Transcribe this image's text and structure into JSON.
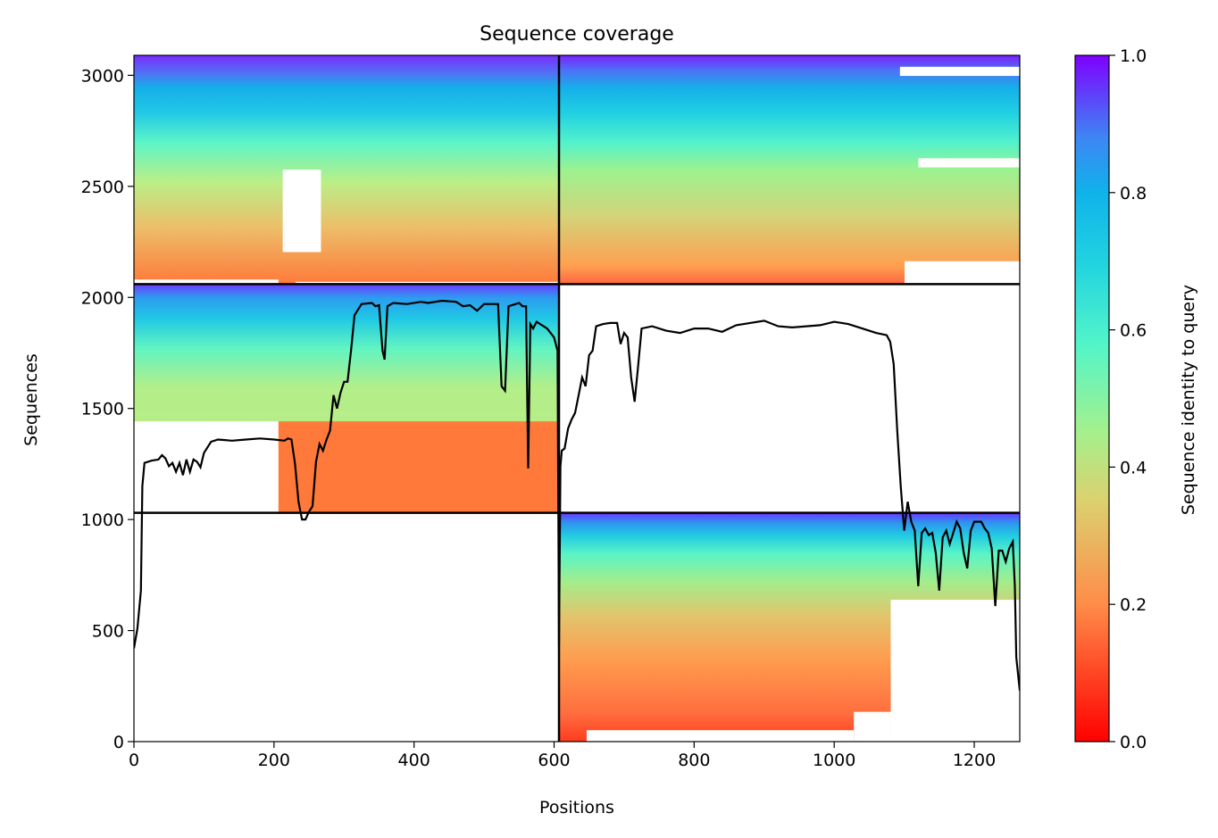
{
  "chart_data": {
    "type": "heatmap",
    "title": "Sequence coverage",
    "xlabel": "Positions",
    "ylabel": "Sequences",
    "xlim": [
      0,
      1265
    ],
    "ylim": [
      0,
      3090
    ],
    "xticks": [
      0,
      200,
      400,
      600,
      800,
      1000,
      1200
    ],
    "xtick_labels": [
      "0",
      "200",
      "400",
      "600",
      "800",
      "1000",
      "1200"
    ],
    "yticks": [
      0,
      500,
      1000,
      1500,
      2000,
      2500,
      3000
    ],
    "ytick_labels": [
      "0",
      "500",
      "1000",
      "1500",
      "2000",
      "2500",
      "3000"
    ],
    "colorbar": {
      "label": "Sequence identity to query",
      "range": [
        0.0,
        1.0
      ],
      "ticks": [
        0.0,
        0.2,
        0.4,
        0.6,
        0.8,
        1.0
      ],
      "tick_labels": [
        "0.0",
        "0.2",
        "0.4",
        "0.6",
        "0.8",
        "1.0"
      ],
      "colormap": "rainbow_r"
    },
    "block_boundaries": {
      "x": [
        607
      ],
      "y": [
        1030,
        2060
      ]
    },
    "blocks": [
      {
        "name": "block-top-left",
        "x_range": [
          0,
          607
        ],
        "y_range": [
          2060,
          3090
        ]
      },
      {
        "name": "block-top-right",
        "x_range": [
          607,
          1265
        ],
        "y_range": [
          2060,
          3090
        ]
      },
      {
        "name": "block-middle-left",
        "x_range": [
          0,
          607
        ],
        "y_range": [
          1030,
          2060
        ]
      },
      {
        "name": "block-bottom-right",
        "x_range": [
          607,
          1265
        ],
        "y_range": [
          0,
          1030
        ]
      }
    ],
    "coverage_line": {
      "color": "#000000",
      "points": [
        [
          0,
          420
        ],
        [
          5,
          510
        ],
        [
          10,
          680
        ],
        [
          12,
          1150
        ],
        [
          15,
          1255
        ],
        [
          25,
          1265
        ],
        [
          35,
          1270
        ],
        [
          40,
          1290
        ],
        [
          45,
          1275
        ],
        [
          50,
          1240
        ],
        [
          55,
          1255
        ],
        [
          60,
          1215
        ],
        [
          65,
          1255
        ],
        [
          70,
          1200
        ],
        [
          75,
          1270
        ],
        [
          80,
          1215
        ],
        [
          85,
          1270
        ],
        [
          90,
          1260
        ],
        [
          95,
          1235
        ],
        [
          100,
          1300
        ],
        [
          110,
          1350
        ],
        [
          120,
          1360
        ],
        [
          140,
          1355
        ],
        [
          160,
          1360
        ],
        [
          180,
          1365
        ],
        [
          200,
          1360
        ],
        [
          215,
          1355
        ],
        [
          220,
          1365
        ],
        [
          225,
          1360
        ],
        [
          230,
          1250
        ],
        [
          235,
          1080
        ],
        [
          240,
          1000
        ],
        [
          245,
          1000
        ],
        [
          250,
          1035
        ],
        [
          255,
          1060
        ],
        [
          260,
          1260
        ],
        [
          265,
          1340
        ],
        [
          270,
          1310
        ],
        [
          275,
          1360
        ],
        [
          280,
          1400
        ],
        [
          285,
          1560
        ],
        [
          290,
          1500
        ],
        [
          295,
          1570
        ],
        [
          300,
          1620
        ],
        [
          305,
          1620
        ],
        [
          310,
          1760
        ],
        [
          315,
          1920
        ],
        [
          325,
          1970
        ],
        [
          340,
          1975
        ],
        [
          345,
          1960
        ],
        [
          350,
          1965
        ],
        [
          355,
          1760
        ],
        [
          358,
          1720
        ],
        [
          362,
          1960
        ],
        [
          370,
          1975
        ],
        [
          390,
          1970
        ],
        [
          410,
          1980
        ],
        [
          420,
          1975
        ],
        [
          440,
          1985
        ],
        [
          460,
          1980
        ],
        [
          470,
          1960
        ],
        [
          480,
          1965
        ],
        [
          490,
          1940
        ],
        [
          500,
          1970
        ],
        [
          520,
          1970
        ],
        [
          525,
          1600
        ],
        [
          530,
          1580
        ],
        [
          535,
          1960
        ],
        [
          550,
          1975
        ],
        [
          555,
          1960
        ],
        [
          560,
          1960
        ],
        [
          563,
          1230
        ],
        [
          566,
          1880
        ],
        [
          570,
          1860
        ],
        [
          575,
          1890
        ],
        [
          580,
          1880
        ],
        [
          590,
          1860
        ],
        [
          600,
          1820
        ],
        [
          605,
          1760
        ],
        [
          607,
          430
        ],
        [
          609,
          1240
        ],
        [
          611,
          1310
        ],
        [
          615,
          1320
        ],
        [
          620,
          1410
        ],
        [
          625,
          1450
        ],
        [
          630,
          1480
        ],
        [
          635,
          1560
        ],
        [
          640,
          1640
        ],
        [
          645,
          1600
        ],
        [
          650,
          1740
        ],
        [
          655,
          1760
        ],
        [
          660,
          1870
        ],
        [
          670,
          1880
        ],
        [
          680,
          1885
        ],
        [
          690,
          1885
        ],
        [
          695,
          1790
        ],
        [
          700,
          1840
        ],
        [
          705,
          1820
        ],
        [
          710,
          1640
        ],
        [
          715,
          1530
        ],
        [
          720,
          1690
        ],
        [
          725,
          1860
        ],
        [
          740,
          1870
        ],
        [
          760,
          1850
        ],
        [
          780,
          1840
        ],
        [
          800,
          1860
        ],
        [
          820,
          1860
        ],
        [
          840,
          1845
        ],
        [
          860,
          1875
        ],
        [
          880,
          1885
        ],
        [
          900,
          1895
        ],
        [
          920,
          1870
        ],
        [
          940,
          1865
        ],
        [
          960,
          1870
        ],
        [
          980,
          1875
        ],
        [
          1000,
          1890
        ],
        [
          1020,
          1880
        ],
        [
          1040,
          1860
        ],
        [
          1060,
          1840
        ],
        [
          1075,
          1830
        ],
        [
          1080,
          1800
        ],
        [
          1085,
          1700
        ],
        [
          1090,
          1400
        ],
        [
          1095,
          1150
        ],
        [
          1100,
          950
        ],
        [
          1105,
          1080
        ],
        [
          1110,
          990
        ],
        [
          1115,
          950
        ],
        [
          1120,
          700
        ],
        [
          1125,
          940
        ],
        [
          1130,
          960
        ],
        [
          1135,
          930
        ],
        [
          1140,
          940
        ],
        [
          1145,
          850
        ],
        [
          1150,
          680
        ],
        [
          1155,
          920
        ],
        [
          1160,
          950
        ],
        [
          1165,
          890
        ],
        [
          1170,
          940
        ],
        [
          1175,
          990
        ],
        [
          1180,
          960
        ],
        [
          1185,
          850
        ],
        [
          1190,
          780
        ],
        [
          1195,
          950
        ],
        [
          1200,
          990
        ],
        [
          1210,
          990
        ],
        [
          1215,
          960
        ],
        [
          1220,
          940
        ],
        [
          1225,
          870
        ],
        [
          1230,
          610
        ],
        [
          1235,
          860
        ],
        [
          1240,
          860
        ],
        [
          1245,
          810
        ],
        [
          1250,
          870
        ],
        [
          1255,
          900
        ],
        [
          1258,
          700
        ],
        [
          1260,
          380
        ],
        [
          1265,
          230
        ]
      ]
    }
  }
}
